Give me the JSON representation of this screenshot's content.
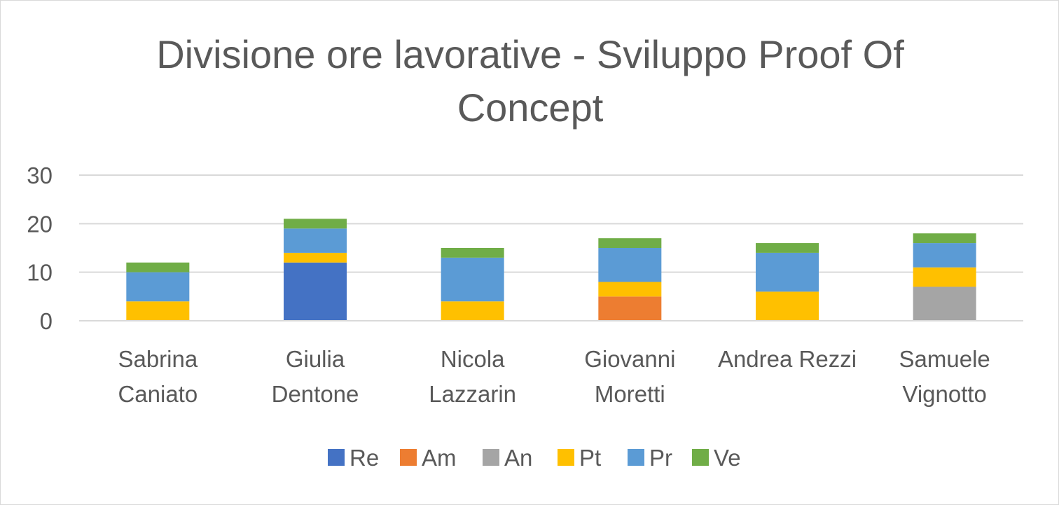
{
  "chart_data": {
    "type": "bar",
    "stacked": true,
    "title_lines": [
      "Divisione ore lavorative - Sviluppo Proof Of",
      "Concept"
    ],
    "categories": [
      [
        "Sabrina",
        "Caniato"
      ],
      [
        "Giulia",
        "Dentone"
      ],
      [
        "Nicola",
        "Lazzarin"
      ],
      [
        "Giovanni",
        "Moretti"
      ],
      [
        "Andrea Rezzi"
      ],
      [
        "Samuele",
        "Vignotto"
      ]
    ],
    "series": [
      {
        "name": "Re",
        "color": "#4472c4",
        "values": [
          0,
          12,
          0,
          0,
          0,
          0
        ]
      },
      {
        "name": "Am",
        "color": "#ed7d31",
        "values": [
          0,
          0,
          0,
          5,
          0,
          0
        ]
      },
      {
        "name": "An",
        "color": "#a5a5a5",
        "values": [
          0,
          0,
          0,
          0,
          0,
          7
        ]
      },
      {
        "name": "Pt",
        "color": "#ffc000",
        "values": [
          4,
          2,
          4,
          3,
          6,
          4
        ]
      },
      {
        "name": "Pr",
        "color": "#5b9bd5",
        "values": [
          6,
          5,
          9,
          7,
          8,
          5
        ]
      },
      {
        "name": "Ve",
        "color": "#70ad47",
        "values": [
          2,
          2,
          2,
          2,
          2,
          2
        ]
      }
    ],
    "ylim": [
      0,
      30
    ],
    "yticks": [
      0,
      10,
      20,
      30
    ],
    "grid": true,
    "legend_position": "bottom"
  }
}
